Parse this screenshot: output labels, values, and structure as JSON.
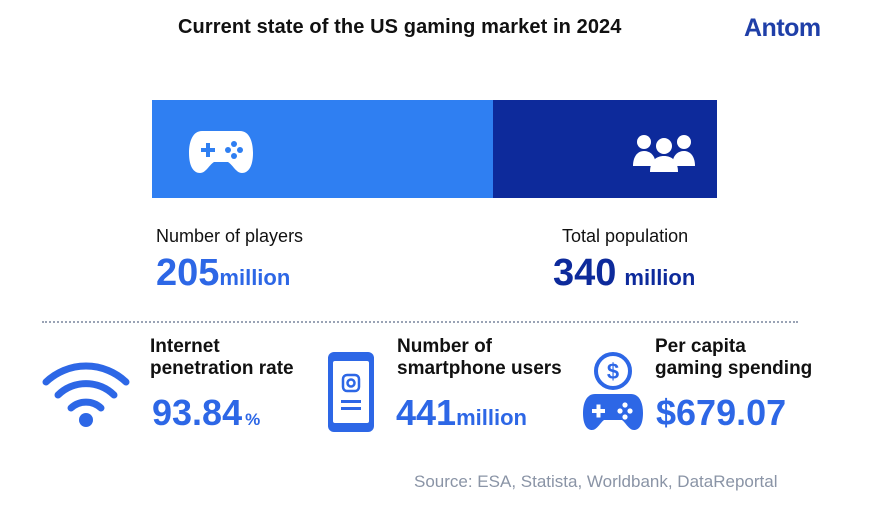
{
  "title": "Current state of the US gaming market in 2024",
  "brand": "Antom",
  "colors": {
    "players": "#2f7ff2",
    "population": "#0d2a9b",
    "accent": "#2d67e6",
    "source": "#8a94a6"
  },
  "chart_data": {
    "type": "bar",
    "orientation": "horizontal-stacked",
    "categories": [
      "Number of players",
      "Total population"
    ],
    "values": [
      205,
      340
    ],
    "unit": "million",
    "xlim": [
      0,
      340
    ]
  },
  "players": {
    "label": "Number of players",
    "value": "205",
    "unit": "million",
    "icon": "gamepad-icon"
  },
  "population": {
    "label": "Total population",
    "value": "340",
    "unit": "million",
    "icon": "people-group-icon"
  },
  "stats": {
    "internet": {
      "label_line1": "Internet",
      "label_line2": "penetration rate",
      "value": "93.84",
      "unit": "%",
      "icon": "wifi-icon"
    },
    "smartphone": {
      "label_line1": "Number of",
      "label_line2": "smartphone users",
      "value": "441",
      "unit": "million",
      "icon": "smartphone-icon"
    },
    "spending": {
      "label_line1": "Per capita",
      "label_line2": "gaming spending",
      "value": "$679.07",
      "icon": "dollar-gamepad-icon"
    }
  },
  "source": "Source: ESA, Statista, Worldbank, DataReportal"
}
